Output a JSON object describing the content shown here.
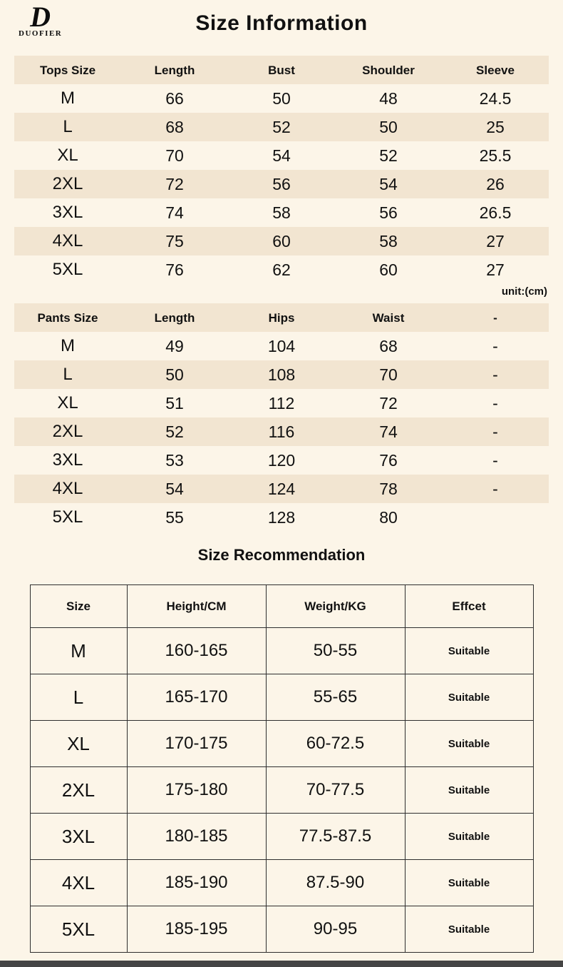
{
  "page": {
    "brand": "DUOFIER",
    "brand_initial": "D",
    "title": "Size Information",
    "unit_note": "unit:(cm)"
  },
  "tops_table": {
    "headers": [
      "Tops Size",
      "Length",
      "Bust",
      "Shoulder",
      "Sleeve"
    ],
    "rows": [
      [
        "M",
        "66",
        "50",
        "48",
        "24.5"
      ],
      [
        "L",
        "68",
        "52",
        "50",
        "25"
      ],
      [
        "XL",
        "70",
        "54",
        "52",
        "25.5"
      ],
      [
        "2XL",
        "72",
        "56",
        "54",
        "26"
      ],
      [
        "3XL",
        "74",
        "58",
        "56",
        "26.5"
      ],
      [
        "4XL",
        "75",
        "60",
        "58",
        "27"
      ],
      [
        "5XL",
        "76",
        "62",
        "60",
        "27"
      ]
    ]
  },
  "pants_table": {
    "headers": [
      "Pants Size",
      "Length",
      "Hips",
      "Waist",
      "-"
    ],
    "rows": [
      [
        "M",
        "49",
        "104",
        "68",
        "-"
      ],
      [
        "L",
        "50",
        "108",
        "70",
        "-"
      ],
      [
        "XL",
        "51",
        "112",
        "72",
        "-"
      ],
      [
        "2XL",
        "52",
        "116",
        "74",
        "-"
      ],
      [
        "3XL",
        "53",
        "120",
        "76",
        "-"
      ],
      [
        "4XL",
        "54",
        "124",
        "78",
        "-"
      ],
      [
        "5XL",
        "55",
        "128",
        "80",
        ""
      ]
    ]
  },
  "recommendation": {
    "title": "Size Recommendation",
    "headers": [
      "Size",
      "Height/CM",
      "Weight/KG",
      "Effcet"
    ],
    "rows": [
      [
        "M",
        "160-165",
        "50-55",
        "Suitable"
      ],
      [
        "L",
        "165-170",
        "55-65",
        "Suitable"
      ],
      [
        "XL",
        "170-175",
        "60-72.5",
        "Suitable"
      ],
      [
        "2XL",
        "175-180",
        "70-77.5",
        "Suitable"
      ],
      [
        "3XL",
        "180-185",
        "77.5-87.5",
        "Suitable"
      ],
      [
        "4XL",
        "185-190",
        "87.5-90",
        "Suitable"
      ],
      [
        "5XL",
        "185-195",
        "90-95",
        "Suitable"
      ]
    ]
  }
}
